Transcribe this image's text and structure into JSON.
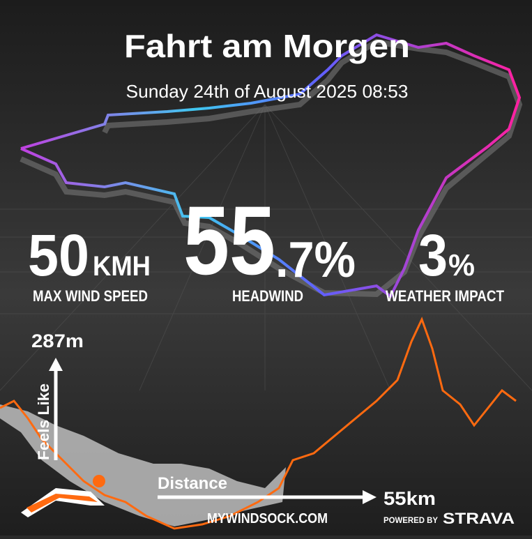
{
  "header": {
    "title": "Fahrt am Morgen",
    "subtitle": "Sunday 24th of August 2025 08:53"
  },
  "stats": [
    {
      "value": "50",
      "unit": "KMH",
      "label": "MAX WIND SPEED"
    },
    {
      "value": "55",
      "decimal": ".7%",
      "label": "HEADWIND"
    },
    {
      "value": "3",
      "unit": "%",
      "label": "WEATHER IMPACT"
    }
  ],
  "profile": {
    "max_elevation": "287m",
    "y_label": "Feels Like",
    "x_label": "Distance",
    "distance": "55km"
  },
  "footer": {
    "site": "MYWINDSOCK.COM",
    "powered": "POWERED BY",
    "brand": "STRAVA"
  }
}
